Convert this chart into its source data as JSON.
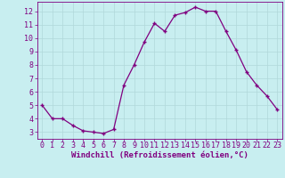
{
  "x": [
    0,
    1,
    2,
    3,
    4,
    5,
    6,
    7,
    8,
    9,
    10,
    11,
    12,
    13,
    14,
    15,
    16,
    17,
    18,
    19,
    20,
    21,
    22,
    23
  ],
  "y": [
    5.0,
    4.0,
    4.0,
    3.5,
    3.1,
    3.0,
    2.9,
    3.2,
    6.5,
    8.0,
    9.7,
    11.1,
    10.5,
    11.7,
    11.9,
    12.3,
    12.0,
    12.0,
    10.5,
    9.1,
    7.5,
    6.5,
    5.7,
    4.7
  ],
  "line_color": "#800080",
  "marker": "+",
  "bg_color": "#c8eef0",
  "grid_color": "#b0d8da",
  "tick_color": "#800080",
  "xlabel": "Windchill (Refroidissement éolien,°C)",
  "xlim": [
    -0.5,
    23.5
  ],
  "ylim": [
    2.5,
    12.7
  ],
  "yticks": [
    3,
    4,
    5,
    6,
    7,
    8,
    9,
    10,
    11,
    12
  ],
  "xticks": [
    0,
    1,
    2,
    3,
    4,
    5,
    6,
    7,
    8,
    9,
    10,
    11,
    12,
    13,
    14,
    15,
    16,
    17,
    18,
    19,
    20,
    21,
    22,
    23
  ],
  "label_fontsize": 6.5,
  "tick_fontsize": 6.0
}
